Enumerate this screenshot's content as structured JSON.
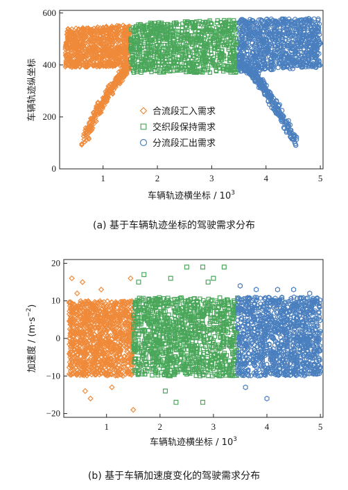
{
  "figure": {
    "caption_a": "(a)  基于车辆轨迹坐标的驾驶需求分布",
    "caption_b": "(b)  基于车辆加速度变化的驾驶需求分布"
  },
  "colors": {
    "orange": "#ef8a3a",
    "green": "#4aa75a",
    "blue": "#4a7fbf"
  },
  "chart_data": [
    {
      "type": "scatter",
      "xlabel": "车辆轨迹横坐标 / 10",
      "xlabel_sup": "3",
      "ylabel": "车辆轨迹纵坐标",
      "xlim": [
        0.2,
        5.05
      ],
      "ylim": [
        0,
        610
      ],
      "xticks": [
        "1",
        "2",
        "3",
        "4",
        "5"
      ],
      "yticks": [
        "0",
        "200",
        "400",
        "600"
      ],
      "legend": [
        {
          "name": "合流段汇入需求",
          "marker": "diamond",
          "color": "#ef8a3a"
        },
        {
          "name": "交织段保持需求",
          "marker": "square",
          "color": "#4aa75a"
        },
        {
          "name": "分流段汇出需求",
          "marker": "circle",
          "color": "#4a7fbf"
        }
      ],
      "series": [
        {
          "marker": "diamond",
          "color": "#ef8a3a",
          "bands": [
            {
              "x": [
                0.3,
                1.5
              ],
              "y_low": [
                390,
                395
              ],
              "y_high": [
                540,
                555
              ]
            }
          ],
          "ramp": {
            "x_start": 0.65,
            "x_end": 1.48,
            "y_start": 90,
            "y_end": 400,
            "width": 0.12
          }
        },
        {
          "marker": "square",
          "color": "#4aa75a",
          "bands": [
            {
              "x": [
                1.5,
                3.5
              ],
              "y_low": [
                370,
                370
              ],
              "y_high": [
                560,
                575
              ]
            }
          ]
        },
        {
          "marker": "circle",
          "color": "#4a7fbf",
          "bands": [
            {
              "x": [
                3.5,
                5.0
              ],
              "y_low": [
                375,
                390
              ],
              "y_high": [
                575,
                580
              ]
            }
          ],
          "ramp": {
            "x_start": 3.55,
            "x_end": 4.55,
            "y_start": 400,
            "y_end": 95,
            "width": 0.12
          }
        }
      ]
    },
    {
      "type": "scatter",
      "xlabel": "车辆轨迹横坐标 / 10",
      "xlabel_sup": "3",
      "ylabel": "加速度 / (m·s",
      "ylabel_sup": "−2",
      "ylabel_end": ")",
      "xlim": [
        0.2,
        5.05
      ],
      "ylim": [
        -21,
        21
      ],
      "xticks": [
        "1",
        "2",
        "3",
        "4",
        "5"
      ],
      "yticks": [
        "−20",
        "−10",
        "0",
        "10",
        "20"
      ],
      "series": [
        {
          "marker": "diamond",
          "color": "#ef8a3a",
          "x": [
            0.3,
            1.5
          ],
          "y": [
            -10,
            10
          ],
          "outliers": [
            [
              0.35,
              16
            ],
            [
              0.45,
              12
            ],
            [
              0.55,
              15
            ],
            [
              0.7,
              -16
            ],
            [
              0.9,
              13
            ],
            [
              1.45,
              16
            ],
            [
              1.5,
              -19
            ],
            [
              1.1,
              -13
            ],
            [
              0.6,
              -14
            ]
          ]
        },
        {
          "marker": "square",
          "color": "#4aa75a",
          "x": [
            1.5,
            3.45
          ],
          "y": [
            -10,
            11
          ],
          "outliers": [
            [
              1.7,
              17
            ],
            [
              2.2,
              16
            ],
            [
              2.5,
              19
            ],
            [
              2.8,
              19
            ],
            [
              2.9,
              15
            ],
            [
              3.2,
              19
            ],
            [
              2.3,
              -17
            ],
            [
              2.8,
              -17
            ],
            [
              2.1,
              -14
            ],
            [
              1.6,
              15
            ],
            [
              3.0,
              16
            ]
          ]
        },
        {
          "marker": "hexagon",
          "color": "#4a7fbf",
          "x": [
            3.45,
            5.0
          ],
          "y": [
            -10,
            11
          ],
          "outliers": [
            [
              3.5,
              14
            ],
            [
              3.8,
              13
            ],
            [
              4.0,
              -16
            ],
            [
              4.2,
              13
            ],
            [
              4.5,
              13
            ],
            [
              4.8,
              12
            ],
            [
              3.6,
              -13
            ]
          ]
        }
      ]
    }
  ]
}
